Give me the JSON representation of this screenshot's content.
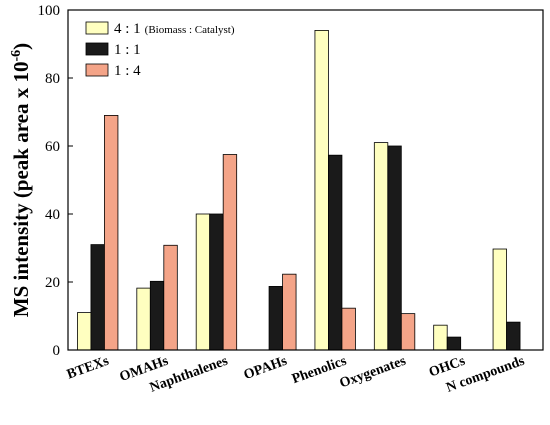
{
  "chart_data": {
    "type": "bar",
    "title": "",
    "xlabel": "",
    "ylabel": "MS intensity (peak area x 10",
    "ylabel_sup": "-6",
    "ylabel_close": ")",
    "ylim": [
      0,
      100
    ],
    "yticks": [
      0,
      20,
      40,
      60,
      80,
      100
    ],
    "grid": false,
    "legend_position": "top-left",
    "categories": [
      "BTEXs",
      "OMAHs",
      "Naphthalenes",
      "OPAHs",
      "Phenolics",
      "Oxygenates",
      "OHCs",
      "N compounds"
    ],
    "series": [
      {
        "name": "4 : 1",
        "note": "(Biomass : Catalyst)",
        "color": "#ffffc0",
        "values": [
          11,
          18.2,
          40,
          null,
          94,
          61,
          7.3,
          29.7
        ]
      },
      {
        "name": "1 : 1",
        "color": "#1a1a1a",
        "values": [
          31,
          20.2,
          40,
          18.7,
          57.3,
          60,
          3.8,
          8.2
        ]
      },
      {
        "name": "1 : 4",
        "color": "#f4a488",
        "values": [
          69,
          30.8,
          57.5,
          22.3,
          12.3,
          10.7,
          null,
          null
        ]
      }
    ]
  }
}
